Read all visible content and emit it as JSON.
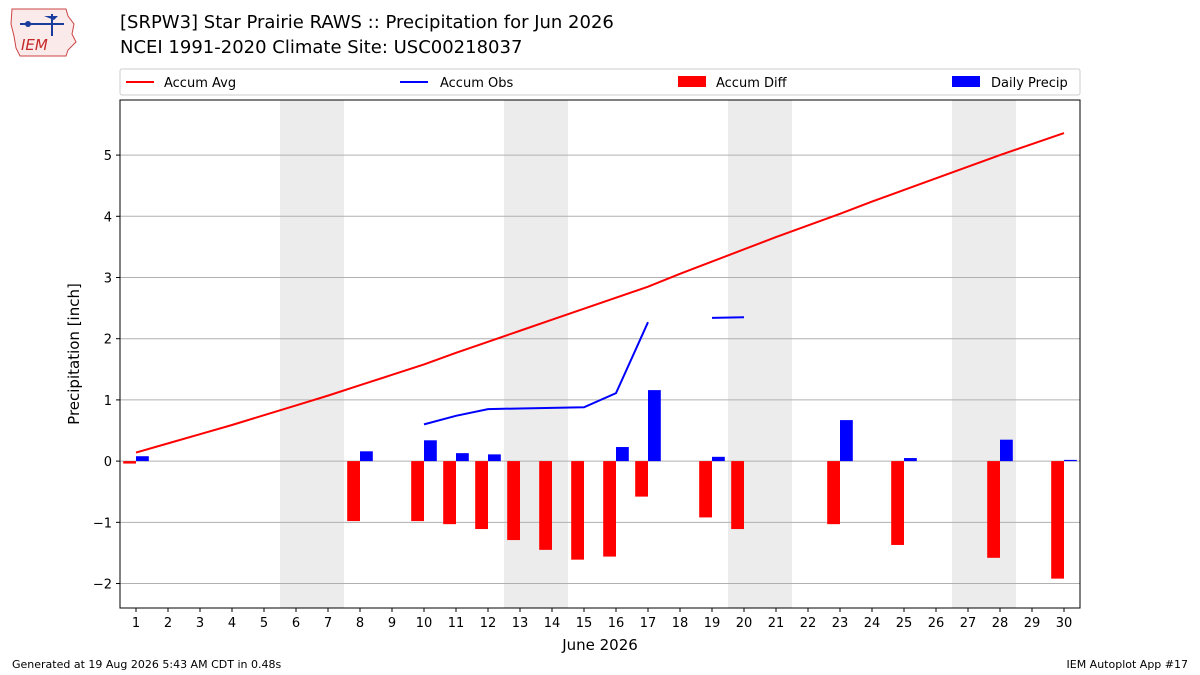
{
  "header": {
    "title": "[SRPW3] Star Prairie RAWS :: Precipitation for Jun 2026",
    "subtitle": "NCEI 1991-2020 Climate Site: USC00218037",
    "logo_text": "IEM"
  },
  "footer": {
    "generated": "Generated at 19 Aug 2026 5:43 AM CDT in 0.48s",
    "app": "IEM Autoplot App #17"
  },
  "colors": {
    "avg": "#ff0000",
    "obs": "#0000ff",
    "diff": "#ff0000",
    "daily": "#0000ff",
    "weekend": "#ececec",
    "grid": "#b0b0b0"
  },
  "chart_data": {
    "type": "bar",
    "xlabel": "June 2026",
    "ylabel": "Precipitation [inch]",
    "ylim": [
      -2.4,
      5.9
    ],
    "xlim": [
      0.5,
      30.5
    ],
    "grid": true,
    "legend_position": "top",
    "yticks": [
      -2,
      -1,
      0,
      1,
      2,
      3,
      4,
      5
    ],
    "ytick_labels": [
      "−2",
      "−1",
      "0",
      "1",
      "2",
      "3",
      "4",
      "5"
    ],
    "days": [
      1,
      2,
      3,
      4,
      5,
      6,
      7,
      8,
      9,
      10,
      11,
      12,
      13,
      14,
      15,
      16,
      17,
      18,
      19,
      20,
      21,
      22,
      23,
      24,
      25,
      26,
      27,
      28,
      29,
      30
    ],
    "weekend_spans": [
      [
        5.5,
        7.5
      ],
      [
        12.5,
        14.5
      ],
      [
        19.5,
        21.5
      ],
      [
        26.5,
        28.5
      ]
    ],
    "series": [
      {
        "name": "Accum Avg",
        "kind": "line",
        "values": [
          0.14,
          0.29,
          0.44,
          0.59,
          0.75,
          0.91,
          1.07,
          1.24,
          1.41,
          1.58,
          1.77,
          1.95,
          2.13,
          2.31,
          2.49,
          2.67,
          2.85,
          3.06,
          3.26,
          3.46,
          3.66,
          3.85,
          4.04,
          4.24,
          4.43,
          4.62,
          4.81,
          5.0,
          5.18,
          5.36
        ]
      },
      {
        "name": "Accum Obs",
        "kind": "line",
        "values": [
          null,
          null,
          null,
          null,
          null,
          null,
          null,
          null,
          null,
          0.6,
          0.74,
          0.85,
          0.86,
          0.87,
          0.88,
          1.11,
          2.27,
          null,
          2.34,
          2.35,
          null,
          null,
          null,
          null,
          null,
          null,
          null,
          null,
          null,
          null
        ]
      },
      {
        "name": "Accum Diff",
        "kind": "bar",
        "values": [
          -0.04,
          null,
          null,
          null,
          null,
          null,
          null,
          -0.98,
          null,
          -0.98,
          -1.03,
          -1.11,
          -1.29,
          -1.45,
          -1.61,
          -1.56,
          -0.58,
          null,
          -0.92,
          -1.11,
          null,
          null,
          -1.03,
          null,
          -1.37,
          null,
          null,
          -1.58,
          null,
          -1.92
        ]
      },
      {
        "name": "Daily Precip",
        "kind": "bar",
        "values": [
          0.08,
          0,
          0,
          0,
          0,
          0,
          0,
          0.16,
          0,
          0.34,
          0.13,
          0.11,
          0,
          0,
          0,
          0.23,
          1.16,
          0,
          0.07,
          0,
          0,
          0,
          0.67,
          0,
          0.05,
          0,
          0,
          0.35,
          0,
          0.02
        ]
      }
    ]
  }
}
